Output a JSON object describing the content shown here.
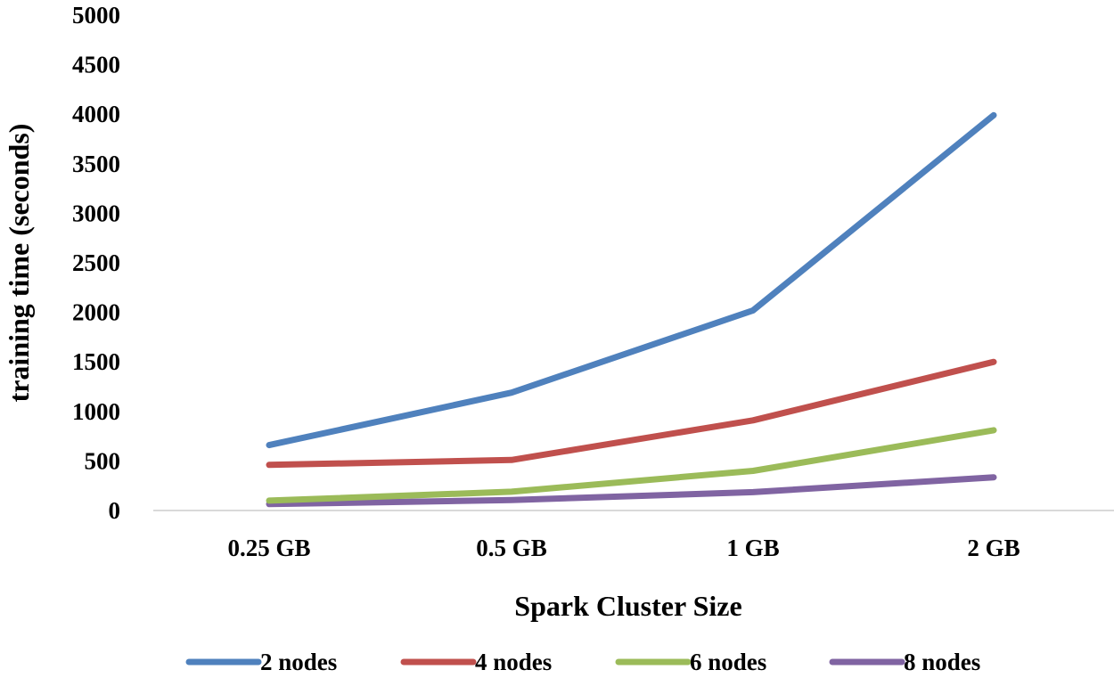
{
  "chart_data": {
    "type": "line",
    "title": "",
    "xlabel": "Spark Cluster Size",
    "ylabel": "training time (seconds)",
    "categories": [
      "0.25 GB",
      "0.5 GB",
      "1 GB",
      "2 GB"
    ],
    "ylim": [
      0,
      5000
    ],
    "yticks": [
      0,
      500,
      1000,
      1500,
      2000,
      2500,
      3000,
      3500,
      4000,
      4500,
      5000
    ],
    "grid": false,
    "legend_position": "bottom",
    "series": [
      {
        "name": "2 nodes",
        "color": "#4f81bd",
        "values": [
          660,
          1190,
          2020,
          3990
        ]
      },
      {
        "name": "4 nodes",
        "color": "#c0504d",
        "values": [
          460,
          510,
          910,
          1500
        ]
      },
      {
        "name": "6 nodes",
        "color": "#9bbb59",
        "values": [
          100,
          190,
          400,
          810
        ]
      },
      {
        "name": "8 nodes",
        "color": "#8064a2",
        "values": [
          65,
          105,
          185,
          335
        ]
      }
    ]
  }
}
